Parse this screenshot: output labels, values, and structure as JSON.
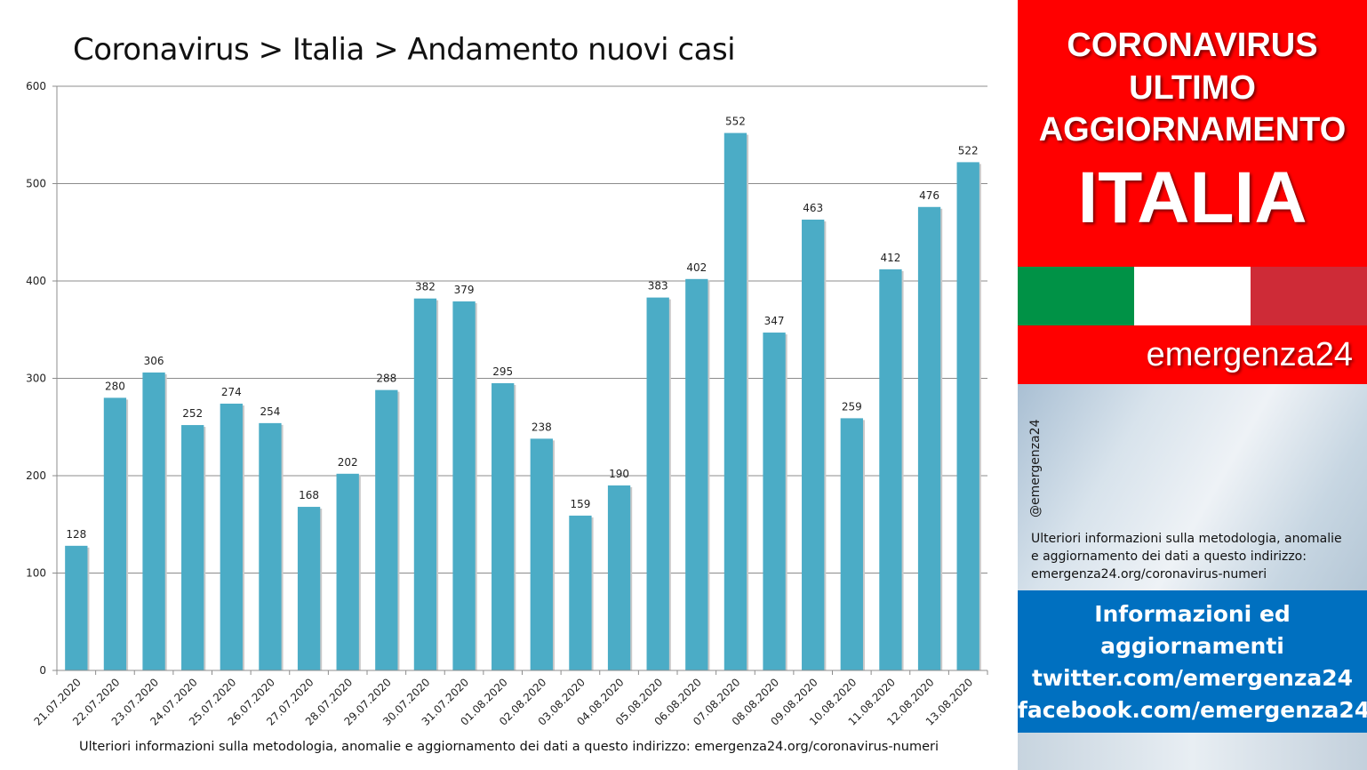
{
  "chart_data": {
    "type": "bar",
    "title": "Coronavirus > Italia > Andamento nuovi casi",
    "categories": [
      "21.07.2020",
      "22.07.2020",
      "23.07.2020",
      "24.07.2020",
      "25.07.2020",
      "26.07.2020",
      "27.07.2020",
      "28.07.2020",
      "29.07.2020",
      "30.07.2020",
      "31.07.2020",
      "01.08.2020",
      "02.08.2020",
      "03.08.2020",
      "04.08.2020",
      "05.08.2020",
      "06.08.2020",
      "07.08.2020",
      "08.08.2020",
      "09.08.2020",
      "10.08.2020",
      "11.08.2020",
      "12.08.2020",
      "13.08.2020"
    ],
    "values": [
      128,
      280,
      306,
      252,
      274,
      254,
      168,
      202,
      288,
      382,
      379,
      295,
      238,
      159,
      190,
      383,
      402,
      552,
      347,
      463,
      259,
      412,
      476,
      522
    ],
    "ylim": [
      0,
      600
    ],
    "yticks": [
      0,
      100,
      200,
      300,
      400,
      500,
      600
    ],
    "grid": true,
    "legend": "none",
    "bar_color": "#4bacc6",
    "footer": "Ulteriori informazioni sulla metodologia, anomalie e aggiornamento dei dati a questo indirizzo: emergenza24.org/coronavirus-numeri"
  },
  "banner": {
    "line1": "CORONAVIRUS",
    "line2": "ULTIMO",
    "line3": "AGGIORNAMENTO",
    "line4": "ITALIA",
    "color": "#ff0000"
  },
  "flag_colors": [
    "#009246",
    "#ffffff",
    "#ce2b37"
  ],
  "brand": "emergenza24",
  "handle": "@emergenza24",
  "side_info": {
    "line1": "Ulteriori informazioni sulla metodologia, anomalie",
    "line2": "e aggiornamento dei dati a questo indirizzo:",
    "line3": "emergenza24.org/coronavirus-numeri"
  },
  "blue_box": {
    "line1": "Informazioni ed",
    "line2": "aggiornamenti",
    "line3": "twitter.com/emergenza24",
    "line4": "facebook.com/emergenza24",
    "color": "#0070c0"
  }
}
